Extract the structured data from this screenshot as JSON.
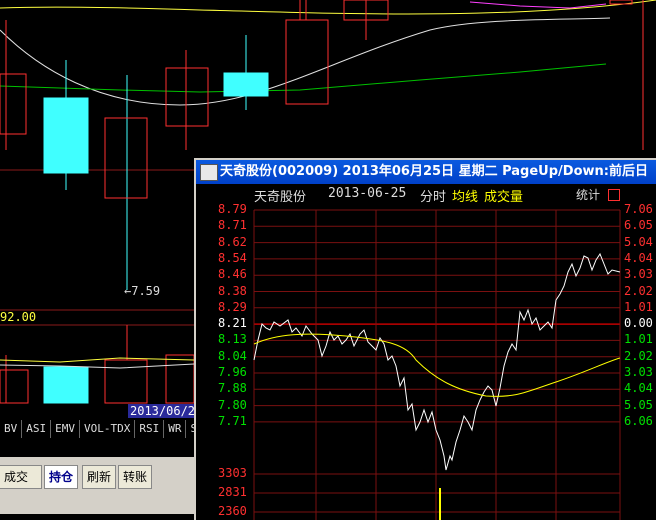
{
  "main_chart": {
    "price_marker": "←7.59",
    "vol_value": "92.00",
    "date_tag": "2013/06/2"
  },
  "indicator_tabs": [
    "BV",
    "ASI",
    "EMV",
    "VOL-TDX",
    "RSI",
    "WR",
    "SAR"
  ],
  "bottom_tabs": [
    {
      "label": "成交",
      "active": false
    },
    {
      "label": "持仓",
      "active": true
    },
    {
      "label": "刷新",
      "active": false
    },
    {
      "label": "转账",
      "active": false
    }
  ],
  "popup": {
    "title": "天奇股份(002009)  2013年06月25日 星期二 PageUp/Down:前后日",
    "sub_name": "天奇股份",
    "sub_date": "2013-06-25",
    "sub_mode": "分时",
    "sub_avg": "均线",
    "sub_vol": "成交量",
    "sub_stats": "统计",
    "price_levels": [
      "8.79",
      "8.71",
      "8.62",
      "8.54",
      "8.46",
      "8.38",
      "8.29",
      "8.21",
      "8.13",
      "8.04",
      "7.96",
      "7.88",
      "7.80",
      "7.71"
    ],
    "pct_levels": [
      "7.06",
      "6.05",
      "5.04",
      "4.04",
      "3.03",
      "2.02",
      "1.01",
      "0.00",
      "1.01",
      "2.02",
      "3.03",
      "4.04",
      "5.05",
      "6.06"
    ],
    "vol_levels": [
      "3303",
      "2831",
      "2360"
    ],
    "colors": {
      "up": "#ff3030",
      "down": "#00e000",
      "base": "#ffffff",
      "avg": "#ffff00"
    }
  }
}
